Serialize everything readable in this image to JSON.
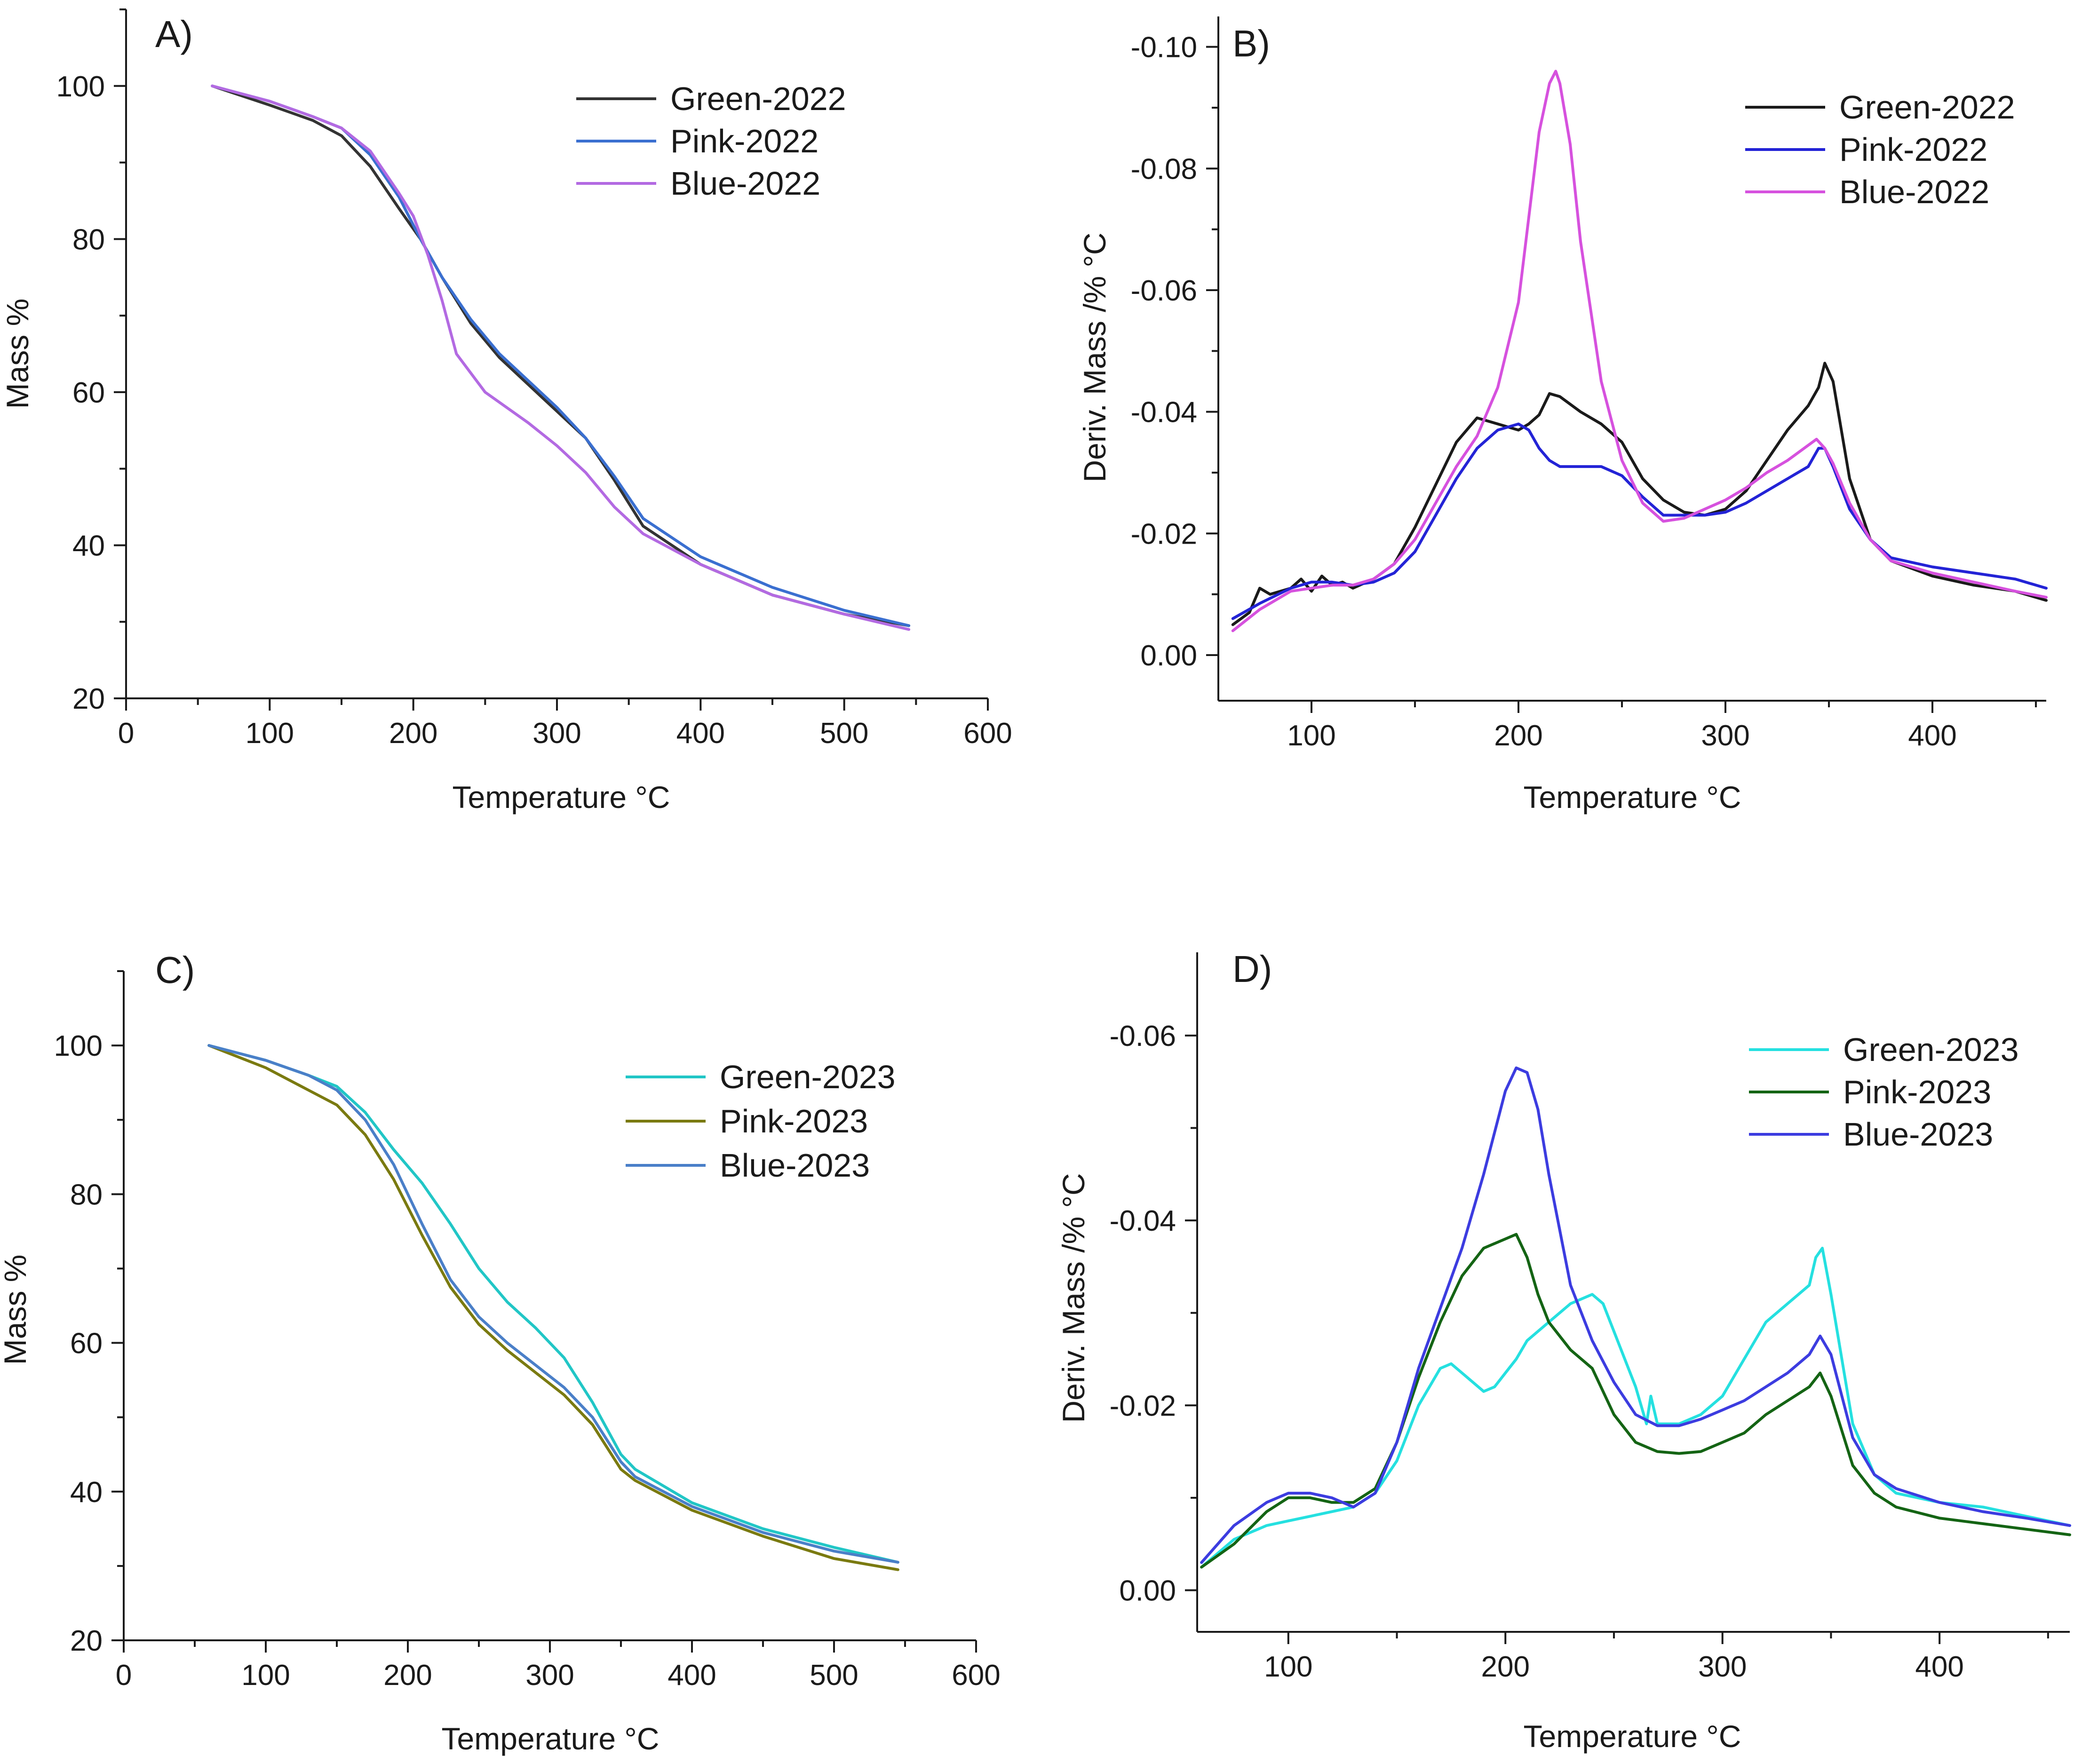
{
  "chart_data": [
    {
      "panel": "A)",
      "type": "line",
      "xlabel": "Temperature °C",
      "ylabel": "Mass %",
      "xlim": [
        0,
        600
      ],
      "ylim": [
        20,
        110
      ],
      "y_reversed": false,
      "xticks": [
        0,
        100,
        200,
        300,
        400,
        500,
        600
      ],
      "xtick_labels": [
        "0",
        "100",
        "200",
        "300",
        "400",
        "500",
        "600"
      ],
      "yticks": [
        20,
        40,
        60,
        80,
        100
      ],
      "ytick_labels": [
        "20",
        "40",
        "60",
        "80",
        "100"
      ],
      "legend": "top-right",
      "series": [
        {
          "name": "Green-2022",
          "color": "#333333",
          "x": [
            60,
            100,
            130,
            150,
            170,
            190,
            205,
            220,
            240,
            260,
            280,
            300,
            320,
            340,
            360,
            400,
            450,
            500,
            545
          ],
          "y": [
            100,
            97.5,
            95.5,
            93.5,
            89.5,
            84,
            80,
            75,
            69,
            64.5,
            61,
            57.5,
            54,
            48.5,
            42.5,
            37.5,
            33.5,
            31,
            29.5
          ]
        },
        {
          "name": "Pink-2022",
          "color": "#3a6fd0",
          "x": [
            60,
            100,
            130,
            150,
            170,
            190,
            205,
            220,
            240,
            260,
            280,
            300,
            320,
            340,
            360,
            400,
            450,
            500,
            545
          ],
          "y": [
            100,
            98,
            96,
            94.5,
            91,
            85.5,
            80,
            75,
            69.5,
            65,
            61.5,
            58,
            54,
            49,
            43.5,
            38.5,
            34.5,
            31.5,
            29.5
          ]
        },
        {
          "name": "Blue-2022",
          "color": "#b36ae2",
          "x": [
            60,
            100,
            130,
            150,
            170,
            190,
            200,
            210,
            220,
            230,
            250,
            280,
            300,
            320,
            340,
            360,
            400,
            450,
            500,
            545
          ],
          "y": [
            100,
            98,
            96,
            94.5,
            91.5,
            86,
            83,
            78,
            72,
            65,
            60,
            56,
            53,
            49.5,
            45,
            41.5,
            37.5,
            33.5,
            31,
            29
          ]
        }
      ]
    },
    {
      "panel": "B)",
      "type": "line",
      "xlabel": "Temperature °C",
      "ylabel": "Deriv. Mass /% °C",
      "xlim": [
        55,
        455
      ],
      "ylim": [
        0.0075,
        -0.105
      ],
      "y_reversed": true,
      "xticks": [
        100,
        200,
        300,
        400
      ],
      "xtick_labels": [
        "100",
        "200",
        "300",
        "400"
      ],
      "yticks": [
        0,
        -0.02,
        -0.04,
        -0.06,
        -0.08,
        -0.1
      ],
      "ytick_labels": [
        "0.00",
        "-0.02",
        "-0.04",
        "-0.06",
        "-0.08",
        "-0.10"
      ],
      "legend": "top-right",
      "series": [
        {
          "name": "Green-2022",
          "color": "#1a1a1a",
          "x": [
            62,
            70,
            75,
            80,
            90,
            95,
            100,
            105,
            110,
            115,
            120,
            130,
            140,
            150,
            160,
            170,
            180,
            190,
            200,
            205,
            210,
            215,
            220,
            230,
            240,
            250,
            260,
            270,
            280,
            290,
            300,
            310,
            320,
            330,
            340,
            345,
            348,
            352,
            360,
            370,
            380,
            400,
            420,
            440,
            455
          ],
          "y": [
            -0.005,
            -0.007,
            -0.011,
            -0.01,
            -0.011,
            -0.0125,
            -0.0105,
            -0.013,
            -0.0115,
            -0.012,
            -0.011,
            -0.0125,
            -0.015,
            -0.021,
            -0.028,
            -0.035,
            -0.039,
            -0.038,
            -0.037,
            -0.038,
            -0.0395,
            -0.043,
            -0.0425,
            -0.04,
            -0.038,
            -0.035,
            -0.029,
            -0.0255,
            -0.0235,
            -0.023,
            -0.024,
            -0.027,
            -0.032,
            -0.037,
            -0.041,
            -0.044,
            -0.048,
            -0.045,
            -0.029,
            -0.019,
            -0.0155,
            -0.013,
            -0.0115,
            -0.0105,
            -0.009
          ]
        },
        {
          "name": "Pink-2022",
          "color": "#2323d6",
          "x": [
            62,
            75,
            90,
            100,
            110,
            120,
            130,
            140,
            150,
            160,
            170,
            180,
            190,
            200,
            205,
            210,
            215,
            220,
            230,
            240,
            250,
            260,
            270,
            280,
            290,
            300,
            310,
            320,
            330,
            340,
            345,
            348,
            352,
            360,
            370,
            380,
            400,
            420,
            440,
            455
          ],
          "y": [
            -0.006,
            -0.0085,
            -0.011,
            -0.012,
            -0.012,
            -0.0115,
            -0.012,
            -0.0135,
            -0.017,
            -0.023,
            -0.029,
            -0.034,
            -0.037,
            -0.038,
            -0.037,
            -0.034,
            -0.032,
            -0.031,
            -0.031,
            -0.031,
            -0.0295,
            -0.026,
            -0.023,
            -0.023,
            -0.023,
            -0.0235,
            -0.025,
            -0.027,
            -0.029,
            -0.031,
            -0.034,
            -0.034,
            -0.031,
            -0.024,
            -0.019,
            -0.016,
            -0.0145,
            -0.0135,
            -0.0125,
            -0.011
          ]
        },
        {
          "name": "Blue-2022",
          "color": "#d651de",
          "x": [
            62,
            75,
            90,
            100,
            110,
            120,
            130,
            140,
            150,
            160,
            170,
            180,
            190,
            200,
            205,
            210,
            215,
            218,
            220,
            225,
            230,
            240,
            250,
            260,
            270,
            280,
            290,
            300,
            310,
            320,
            330,
            340,
            344,
            348,
            352,
            360,
            370,
            380,
            400,
            420,
            440,
            455
          ],
          "y": [
            -0.004,
            -0.0075,
            -0.0105,
            -0.011,
            -0.0115,
            -0.0115,
            -0.0125,
            -0.015,
            -0.019,
            -0.025,
            -0.031,
            -0.036,
            -0.044,
            -0.058,
            -0.072,
            -0.086,
            -0.094,
            -0.096,
            -0.094,
            -0.084,
            -0.068,
            -0.045,
            -0.032,
            -0.025,
            -0.022,
            -0.0225,
            -0.024,
            -0.0255,
            -0.0275,
            -0.03,
            -0.032,
            -0.0345,
            -0.0355,
            -0.034,
            -0.0315,
            -0.025,
            -0.019,
            -0.0155,
            -0.0135,
            -0.012,
            -0.0105,
            -0.0095
          ]
        }
      ]
    },
    {
      "panel": "C)",
      "type": "line",
      "xlabel": "Temperature °C",
      "ylabel": "Mass %",
      "xlim": [
        0,
        600
      ],
      "ylim": [
        20,
        110
      ],
      "y_reversed": false,
      "xticks": [
        0,
        100,
        200,
        300,
        400,
        500,
        600
      ],
      "xtick_labels": [
        "0",
        "100",
        "200",
        "300",
        "400",
        "500",
        "600"
      ],
      "yticks": [
        20,
        40,
        60,
        80,
        100
      ],
      "ytick_labels": [
        "20",
        "40",
        "60",
        "80",
        "100"
      ],
      "legend": "top-right",
      "series": [
        {
          "name": "Green-2023",
          "color": "#21c6c6",
          "x": [
            60,
            100,
            130,
            150,
            170,
            190,
            210,
            230,
            250,
            270,
            290,
            310,
            330,
            350,
            360,
            400,
            450,
            500,
            545
          ],
          "y": [
            100,
            98,
            96,
            94.5,
            91,
            86,
            81.5,
            76,
            70,
            65.5,
            62,
            58,
            52,
            45,
            43,
            38.5,
            35,
            32.5,
            30.5
          ]
        },
        {
          "name": "Pink-2023",
          "color": "#7a7a10",
          "x": [
            60,
            100,
            130,
            150,
            170,
            190,
            210,
            230,
            250,
            270,
            290,
            310,
            330,
            350,
            360,
            400,
            450,
            500,
            545
          ],
          "y": [
            100,
            97,
            94,
            92,
            88,
            82,
            74.5,
            67.5,
            62.5,
            59,
            56,
            53,
            49,
            43,
            41.5,
            37.5,
            34,
            31,
            29.5
          ]
        },
        {
          "name": "Blue-2023",
          "color": "#4a7fc8",
          "x": [
            60,
            100,
            130,
            150,
            170,
            190,
            210,
            230,
            250,
            270,
            290,
            310,
            330,
            350,
            360,
            400,
            450,
            500,
            545
          ],
          "y": [
            100,
            98,
            96,
            94,
            90,
            84,
            76,
            68.5,
            63.5,
            60,
            57,
            54,
            50,
            44,
            42,
            38,
            34.5,
            32,
            30.5
          ]
        }
      ]
    },
    {
      "panel": "D)",
      "type": "line",
      "xlabel": "Temperature °C",
      "ylabel": "Deriv. Mass /% °C",
      "xlim": [
        58,
        460
      ],
      "ylim": [
        0.0045,
        -0.069
      ],
      "y_reversed": true,
      "xticks": [
        100,
        200,
        300,
        400
      ],
      "xtick_labels": [
        "100",
        "200",
        "300",
        "400"
      ],
      "yticks": [
        0,
        -0.02,
        -0.04,
        -0.06
      ],
      "ytick_labels": [
        "0.00",
        "-0.02",
        "-0.04",
        "-0.06"
      ],
      "legend": "top-right",
      "series": [
        {
          "name": "Green-2023",
          "color": "#25e0e0",
          "x": [
            60,
            75,
            90,
            100,
            110,
            120,
            130,
            140,
            150,
            160,
            170,
            175,
            180,
            190,
            195,
            200,
            205,
            210,
            220,
            230,
            240,
            245,
            250,
            260,
            265,
            267,
            270,
            280,
            290,
            300,
            310,
            320,
            330,
            340,
            343,
            346,
            350,
            360,
            370,
            380,
            400,
            420,
            440,
            460
          ],
          "y": [
            -0.0025,
            -0.0055,
            -0.007,
            -0.0075,
            -0.008,
            -0.0085,
            -0.009,
            -0.0105,
            -0.014,
            -0.02,
            -0.024,
            -0.0245,
            -0.0235,
            -0.0215,
            -0.022,
            -0.0235,
            -0.025,
            -0.027,
            -0.029,
            -0.031,
            -0.032,
            -0.031,
            -0.028,
            -0.022,
            -0.018,
            -0.021,
            -0.018,
            -0.018,
            -0.019,
            -0.021,
            -0.025,
            -0.029,
            -0.031,
            -0.033,
            -0.036,
            -0.037,
            -0.032,
            -0.018,
            -0.0125,
            -0.0105,
            -0.0095,
            -0.009,
            -0.008,
            -0.007
          ]
        },
        {
          "name": "Pink-2023",
          "color": "#146414",
          "x": [
            60,
            75,
            90,
            100,
            110,
            120,
            130,
            140,
            150,
            160,
            170,
            180,
            190,
            200,
            205,
            210,
            215,
            220,
            230,
            240,
            250,
            260,
            270,
            280,
            290,
            300,
            310,
            320,
            330,
            340,
            345,
            350,
            360,
            370,
            380,
            400,
            420,
            440,
            460
          ],
          "y": [
            -0.0025,
            -0.005,
            -0.0085,
            -0.01,
            -0.01,
            -0.0095,
            -0.0095,
            -0.011,
            -0.016,
            -0.023,
            -0.029,
            -0.034,
            -0.037,
            -0.038,
            -0.0385,
            -0.036,
            -0.032,
            -0.029,
            -0.026,
            -0.024,
            -0.019,
            -0.016,
            -0.015,
            -0.0148,
            -0.015,
            -0.016,
            -0.017,
            -0.019,
            -0.0205,
            -0.022,
            -0.0235,
            -0.021,
            -0.0135,
            -0.0105,
            -0.009,
            -0.0078,
            -0.0072,
            -0.0066,
            -0.006
          ]
        },
        {
          "name": "Blue-2023",
          "color": "#3c3ce0",
          "x": [
            60,
            75,
            90,
            100,
            110,
            120,
            130,
            140,
            150,
            160,
            170,
            180,
            190,
            200,
            205,
            210,
            215,
            220,
            230,
            240,
            250,
            260,
            270,
            280,
            290,
            300,
            310,
            320,
            330,
            340,
            345,
            350,
            360,
            370,
            380,
            400,
            420,
            440,
            460
          ],
          "y": [
            -0.003,
            -0.007,
            -0.0095,
            -0.0105,
            -0.0105,
            -0.01,
            -0.009,
            -0.0105,
            -0.016,
            -0.024,
            -0.0305,
            -0.037,
            -0.045,
            -0.054,
            -0.0565,
            -0.056,
            -0.052,
            -0.045,
            -0.033,
            -0.027,
            -0.0225,
            -0.019,
            -0.0178,
            -0.0178,
            -0.0185,
            -0.0195,
            -0.0205,
            -0.022,
            -0.0235,
            -0.0255,
            -0.0275,
            -0.0255,
            -0.0165,
            -0.0125,
            -0.011,
            -0.0095,
            -0.0085,
            -0.0078,
            -0.007
          ]
        }
      ]
    }
  ]
}
